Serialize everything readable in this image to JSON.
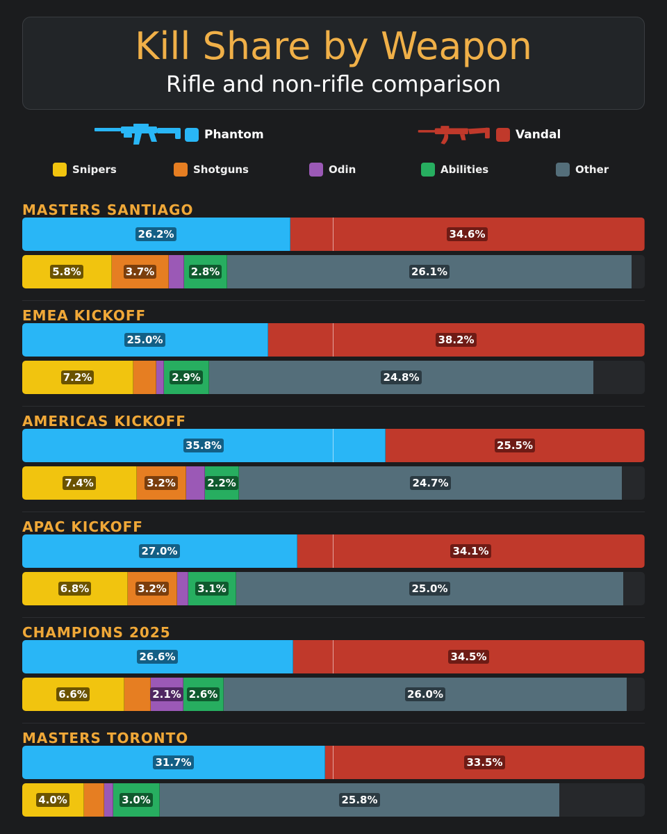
{
  "title": "Kill Share by Weapon",
  "subtitle": "Rifle and non-rifle comparison",
  "colors": {
    "phantom": "#29b6f6",
    "vandal": "#c0392b",
    "snipers": "#f1c40f",
    "shotguns": "#e67e22",
    "odin": "#9b59b6",
    "abilities": "#27ae60",
    "other": "#546e7a",
    "accent": "#f0b048"
  },
  "legend": {
    "rifles": [
      {
        "key": "phantom",
        "label": "Phantom",
        "icon": "phantom-rifle-icon"
      },
      {
        "key": "vandal",
        "label": "Vandal",
        "icon": "vandal-rifle-icon"
      }
    ],
    "others": [
      {
        "key": "snipers",
        "label": "Snipers"
      },
      {
        "key": "shotguns",
        "label": "Shotguns"
      },
      {
        "key": "odin",
        "label": "Odin"
      },
      {
        "key": "abilities",
        "label": "Abilities"
      },
      {
        "key": "other",
        "label": "Other"
      }
    ]
  },
  "chart_data": {
    "type": "bar",
    "orientation": "horizontal-stacked",
    "title": "Kill Share by Weapon",
    "subtitle": "Rifle and non-rifle comparison",
    "unit": "%",
    "rifle_categories": [
      "Phantom",
      "Vandal"
    ],
    "other_categories": [
      "Snipers",
      "Shotguns",
      "Odin",
      "Abilities",
      "Other"
    ],
    "events": [
      {
        "name": "MASTERS SANTIAGO",
        "rifles": [
          26.2,
          34.6
        ],
        "rifle_labels": [
          "26.2%",
          "34.6%"
        ],
        "others": [
          5.8,
          3.7,
          1.0,
          2.8,
          26.1
        ],
        "other_labels": [
          "5.8%",
          "3.7%",
          "",
          "2.8%",
          "26.1%"
        ]
      },
      {
        "name": "EMEA KICKOFF",
        "rifles": [
          25.0,
          38.2
        ],
        "rifle_labels": [
          "25.0%",
          "38.2%"
        ],
        "others": [
          7.2,
          1.5,
          0.5,
          2.9,
          24.8
        ],
        "other_labels": [
          "7.2%",
          "",
          "",
          "2.9%",
          "24.8%"
        ]
      },
      {
        "name": "AMERICAS KICKOFF",
        "rifles": [
          35.8,
          25.5
        ],
        "rifle_labels": [
          "35.8%",
          "25.5%"
        ],
        "others": [
          7.4,
          3.2,
          1.2,
          2.2,
          24.7
        ],
        "other_labels": [
          "7.4%",
          "3.2%",
          "",
          "2.2%",
          "24.7%"
        ]
      },
      {
        "name": "APAC KICKOFF",
        "rifles": [
          27.0,
          34.1
        ],
        "rifle_labels": [
          "27.0%",
          "34.1%"
        ],
        "others": [
          6.8,
          3.2,
          0.7,
          3.1,
          25.0
        ],
        "other_labels": [
          "6.8%",
          "3.2%",
          "",
          "3.1%",
          "25.0%"
        ]
      },
      {
        "name": "CHAMPIONS 2025",
        "rifles": [
          26.6,
          34.5
        ],
        "rifle_labels": [
          "26.6%",
          "34.5%"
        ],
        "others": [
          6.6,
          1.7,
          2.1,
          2.6,
          26.0
        ],
        "other_labels": [
          "6.6%",
          "",
          "2.1%",
          "2.6%",
          "26.0%"
        ]
      },
      {
        "name": "MASTERS TORONTO",
        "rifles": [
          31.7,
          33.5
        ],
        "rifle_labels": [
          "31.7%",
          "33.5%"
        ],
        "others": [
          4.0,
          1.3,
          0.6,
          3.0,
          25.8
        ],
        "other_labels": [
          "4.0%",
          "",
          "",
          "3.0%",
          "25.8%"
        ]
      }
    ]
  }
}
